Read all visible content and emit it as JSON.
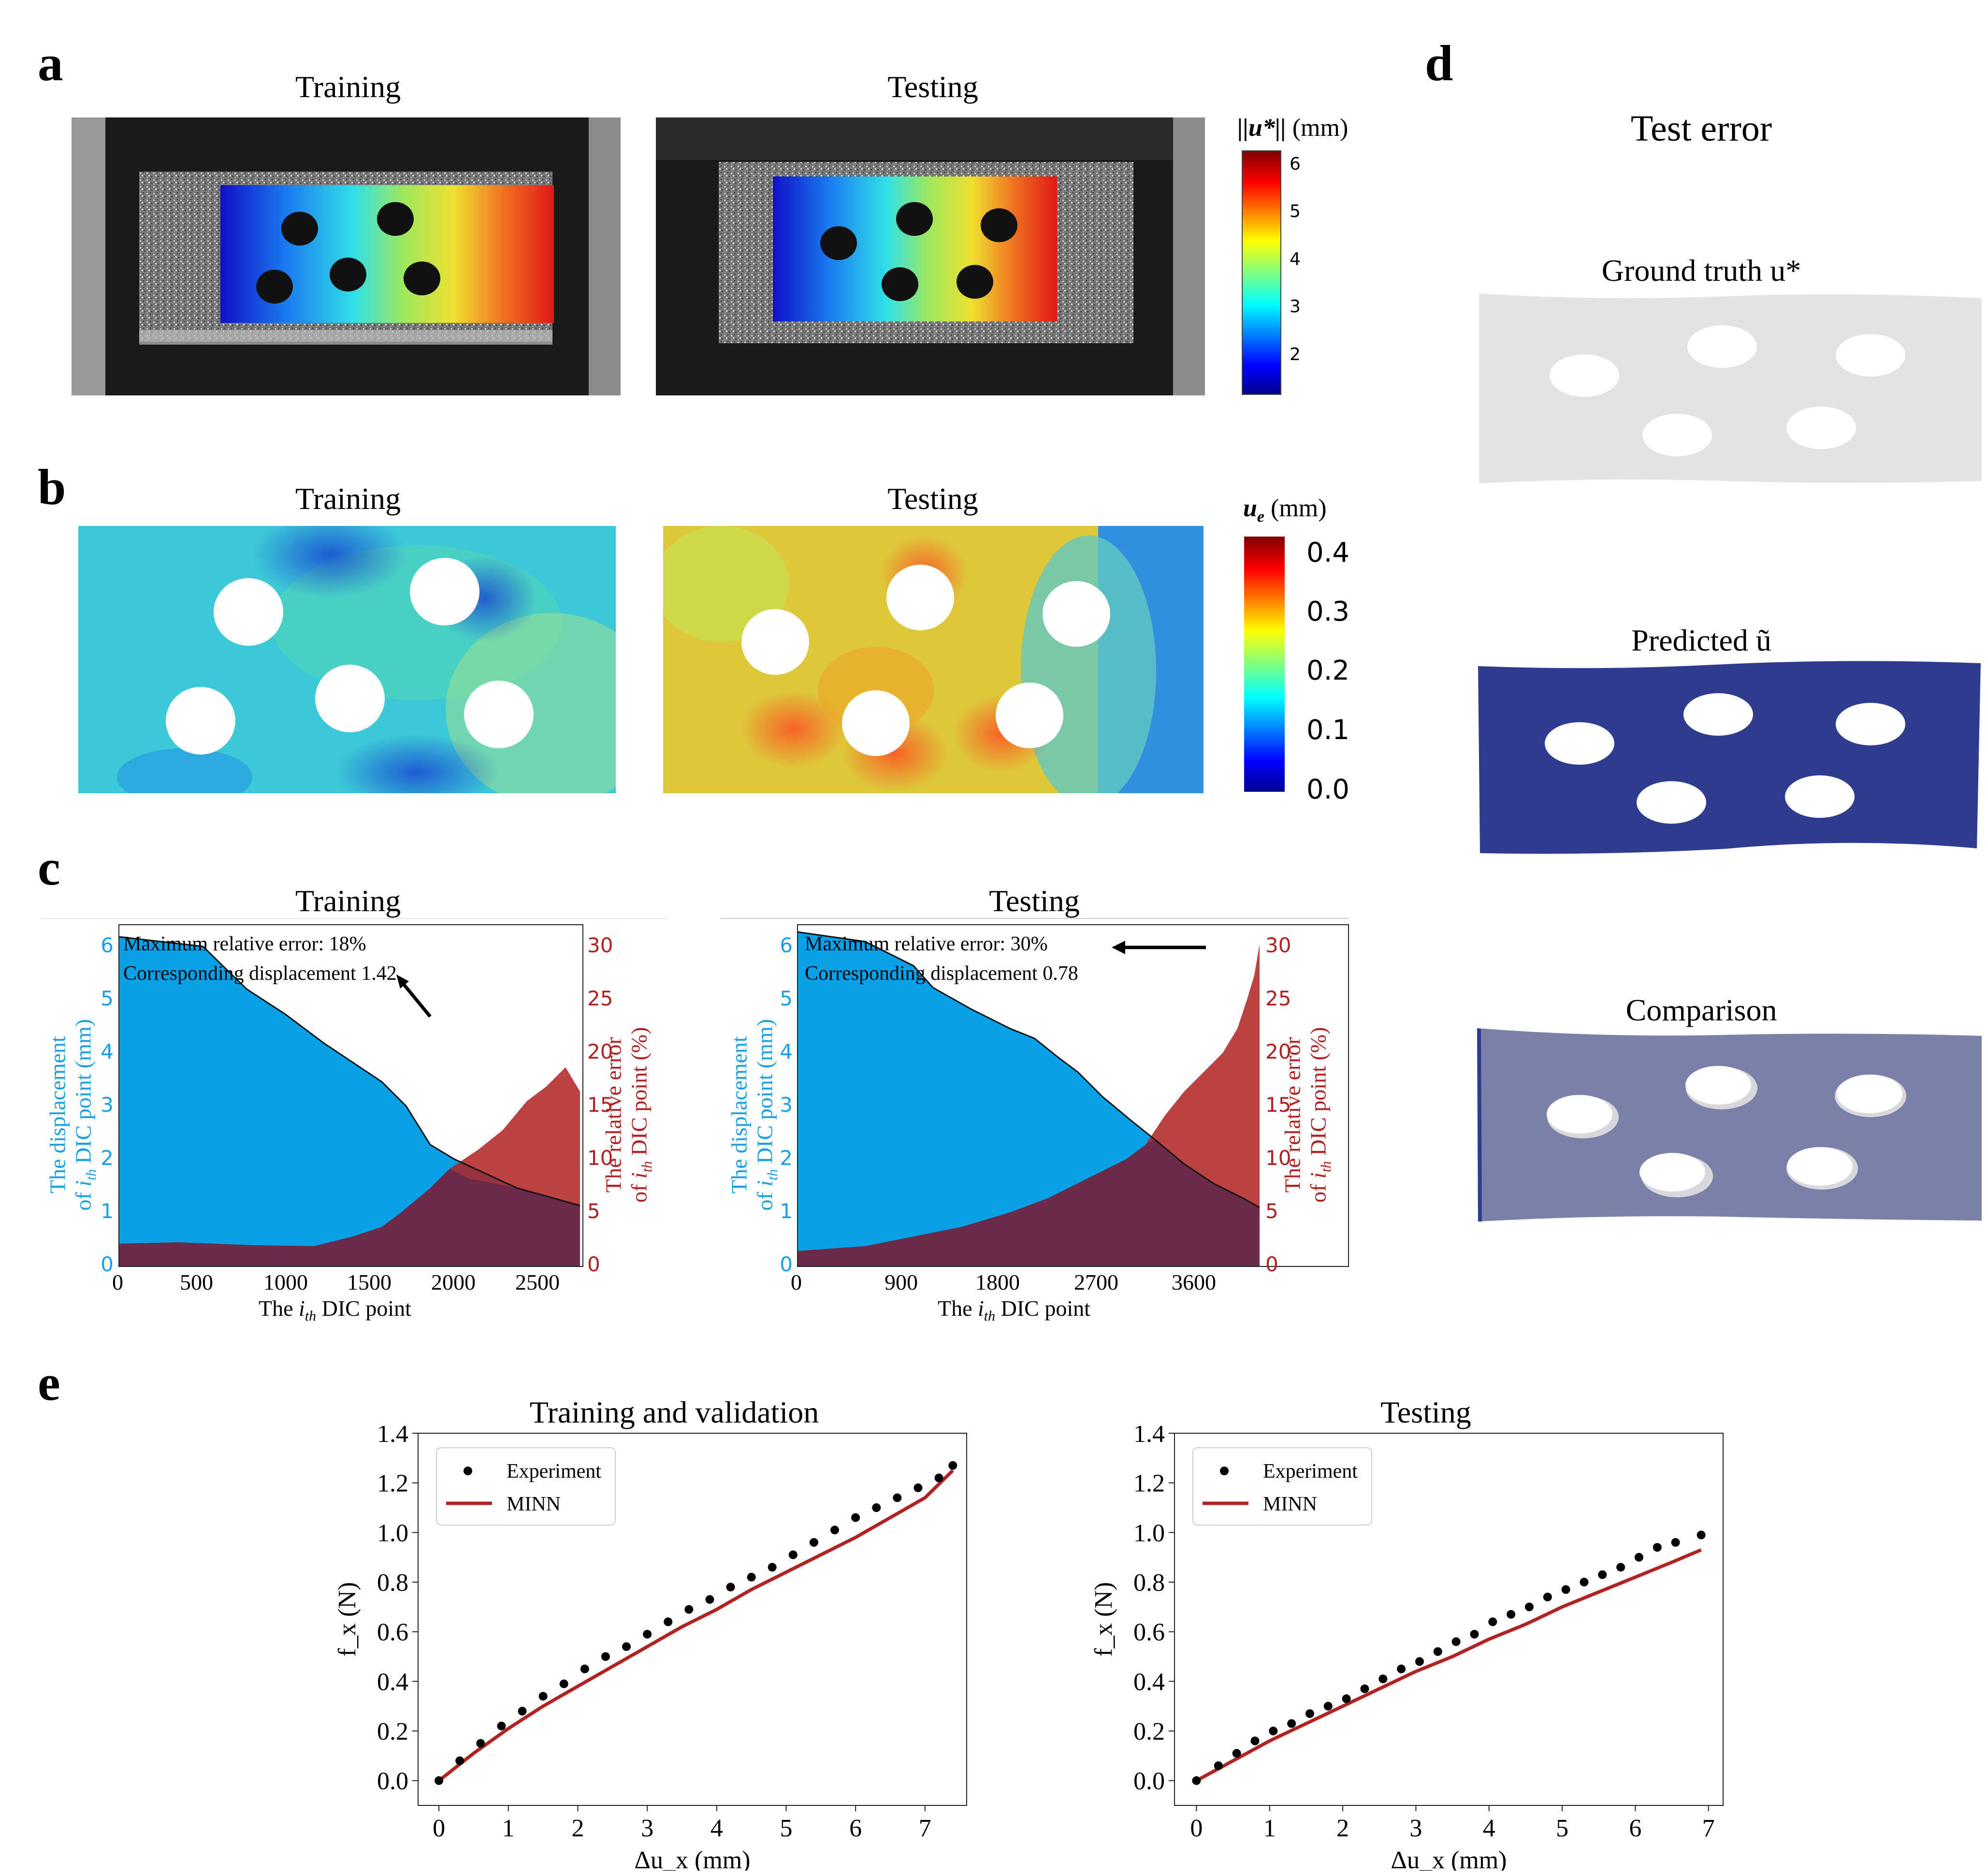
{
  "panel_labels": {
    "a": "a",
    "b": "b",
    "c": "c",
    "d": "d",
    "e": "e"
  },
  "a": {
    "train_title": "Training",
    "test_title": "Testing",
    "cbar": {
      "label_main": "||u*||",
      "label_unit": "(mm)",
      "ticks": [
        "6",
        "5",
        "4",
        "3",
        "2"
      ]
    }
  },
  "b": {
    "train_title": "Training",
    "test_title": "Testing",
    "cbar": {
      "label_sym": "u",
      "label_sub": "e",
      "label_unit": "(mm)",
      "ticks": [
        "0.4",
        "0.3",
        "0.2",
        "0.1",
        "0.0"
      ]
    }
  },
  "c": {
    "train": {
      "title": "Training",
      "annot_line1": "Maximum relative error: 18%",
      "annot_line2": "Corresponding displacement 1.42",
      "xticks": [
        "0",
        "500",
        "1000",
        "1500",
        "2000",
        "2500"
      ],
      "yticks_left": [
        "0",
        "1",
        "2",
        "3",
        "4",
        "5",
        "6"
      ],
      "yticks_right": [
        "0",
        "5",
        "10",
        "15",
        "20",
        "25",
        "30"
      ]
    },
    "test": {
      "title": "Testing",
      "annot_line1": "Maximum relative error: 30%",
      "annot_line2": "Corresponding displacement 0.78",
      "xticks": [
        "0",
        "900",
        "1800",
        "2700",
        "3600"
      ],
      "yticks_left": [
        "0",
        "1",
        "2",
        "3",
        "4",
        "5",
        "6"
      ],
      "yticks_right": [
        "0",
        "5",
        "10",
        "15",
        "20",
        "25",
        "30"
      ]
    },
    "xlabel": {
      "pre": "The ",
      "sym": "i",
      "sub": "th",
      "post": " DIC point"
    },
    "ylabel_left": {
      "line1": "The displacement",
      "line2_pre": "of ",
      "sym": "i",
      "sub": "th",
      "line2_post": " DIC point (mm)"
    },
    "ylabel_right": {
      "line1": "The relative error",
      "line2_pre": "of ",
      "sym": "i",
      "sub": "th",
      "line2_post": " DIC point (%)"
    },
    "colors": {
      "displacement": "#0aa0e6",
      "error": "#b02020",
      "overlap": "#6b2a48"
    }
  },
  "d": {
    "title": "Test error",
    "gt_label": "Ground truth u*",
    "pred_label": "Predicted ũ",
    "cmp_label": "Comparison",
    "colors": {
      "gt": "#e3e3e1",
      "pred": "#2e3c90",
      "cmp": "#7b80a8"
    }
  },
  "e": {
    "legend": {
      "experiment": "Experiment",
      "model": "MINN"
    },
    "xlabel": "Δu_x (mm)",
    "ylabel": "f_x (N)",
    "yticks": [
      "0.0",
      "0.2",
      "0.4",
      "0.6",
      "0.8",
      "1.0",
      "1.2",
      "1.4"
    ]
  },
  "chart_data": [
    {
      "type": "scatter",
      "title": "Training and validation",
      "xlabel": "Δu_x (mm)",
      "ylabel": "f_x (N)",
      "xlim": [
        -0.3,
        7.6
      ],
      "ylim": [
        -0.1,
        1.4
      ],
      "xticks": [
        0,
        1,
        2,
        3,
        4,
        5,
        6,
        7
      ],
      "legend": "upper left",
      "series": [
        {
          "name": "Experiment",
          "style": "points",
          "color": "#000000",
          "x": [
            0,
            0.3,
            0.6,
            0.9,
            1.2,
            1.5,
            1.8,
            2.1,
            2.4,
            2.7,
            3.0,
            3.3,
            3.6,
            3.9,
            4.2,
            4.5,
            4.8,
            5.1,
            5.4,
            5.7,
            6.0,
            6.3,
            6.6,
            6.9,
            7.2,
            7.4
          ],
          "y": [
            0,
            0.08,
            0.15,
            0.22,
            0.28,
            0.34,
            0.39,
            0.45,
            0.5,
            0.54,
            0.59,
            0.64,
            0.69,
            0.73,
            0.78,
            0.82,
            0.86,
            0.91,
            0.96,
            1.01,
            1.06,
            1.1,
            1.14,
            1.18,
            1.22,
            1.27
          ]
        },
        {
          "name": "MINN",
          "style": "line",
          "color": "#b22222",
          "x": [
            0,
            0.5,
            1,
            1.5,
            2,
            2.5,
            3,
            3.5,
            4,
            4.5,
            5,
            5.5,
            6,
            6.5,
            7,
            7.4
          ],
          "y": [
            0,
            0.11,
            0.21,
            0.3,
            0.38,
            0.46,
            0.54,
            0.62,
            0.69,
            0.77,
            0.84,
            0.91,
            0.98,
            1.06,
            1.14,
            1.25
          ]
        }
      ]
    },
    {
      "type": "scatter",
      "title": "Testing",
      "xlabel": "Δu_x (mm)",
      "ylabel": "f_x (N)",
      "xlim": [
        -0.3,
        7.2
      ],
      "ylim": [
        -0.1,
        1.4
      ],
      "xticks": [
        0,
        1,
        2,
        3,
        4,
        5,
        6,
        7
      ],
      "legend": "upper left",
      "series": [
        {
          "name": "Experiment",
          "style": "points",
          "color": "#000000",
          "x": [
            0,
            0.3,
            0.55,
            0.8,
            1.05,
            1.3,
            1.55,
            1.8,
            2.05,
            2.3,
            2.55,
            2.8,
            3.05,
            3.3,
            3.55,
            3.8,
            4.05,
            4.3,
            4.55,
            4.8,
            5.05,
            5.3,
            5.55,
            5.8,
            6.05,
            6.3,
            6.55,
            6.9
          ],
          "y": [
            0,
            0.06,
            0.11,
            0.16,
            0.2,
            0.23,
            0.27,
            0.3,
            0.33,
            0.37,
            0.41,
            0.45,
            0.48,
            0.52,
            0.56,
            0.59,
            0.64,
            0.67,
            0.7,
            0.74,
            0.77,
            0.8,
            0.83,
            0.86,
            0.9,
            0.94,
            0.96,
            0.99
          ]
        },
        {
          "name": "MINN",
          "style": "line",
          "color": "#b22222",
          "x": [
            0,
            0.5,
            1,
            1.5,
            2,
            2.5,
            3,
            3.5,
            4,
            4.5,
            5,
            5.5,
            6,
            6.5,
            6.9
          ],
          "y": [
            0,
            0.08,
            0.16,
            0.23,
            0.3,
            0.37,
            0.44,
            0.5,
            0.57,
            0.63,
            0.7,
            0.76,
            0.82,
            0.88,
            0.93
          ]
        }
      ]
    }
  ]
}
